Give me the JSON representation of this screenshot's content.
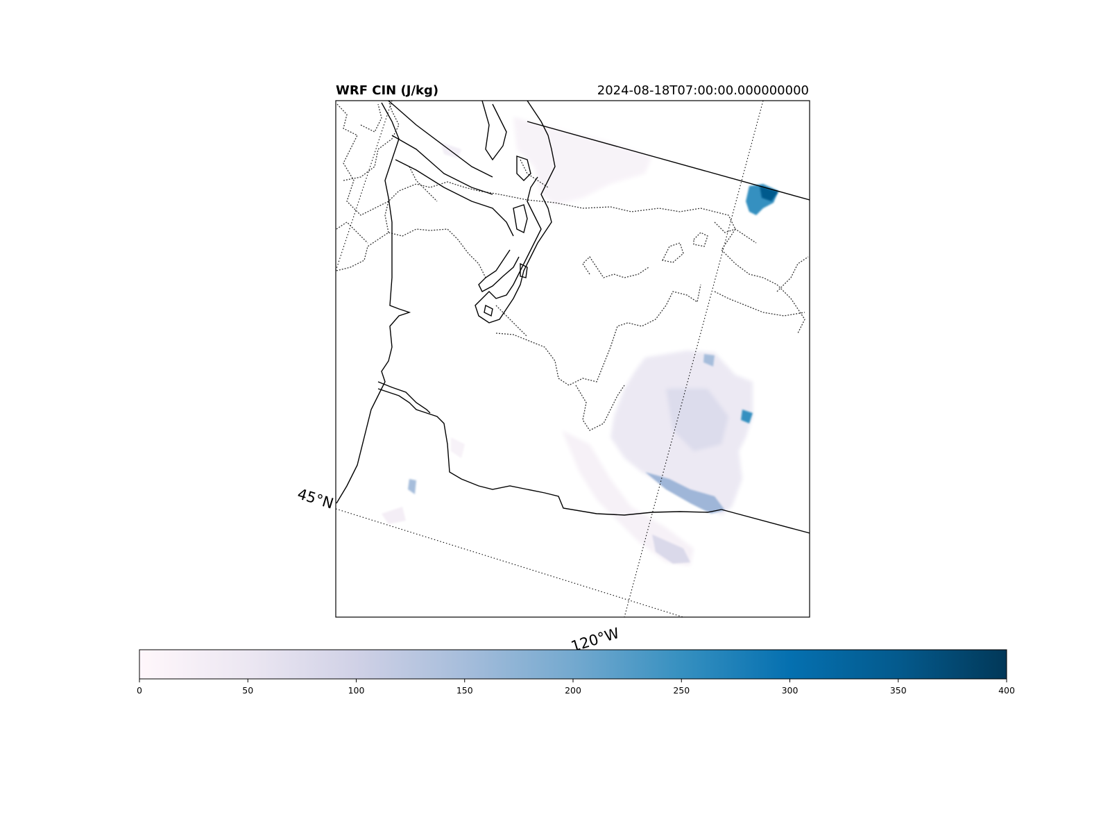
{
  "title": "WRF CIN (J/kg)",
  "timestamp": "2024-08-18T07:00:00.000000000",
  "gridlines": {
    "latitude_labels": [
      "45°N"
    ],
    "longitude_labels": [
      "120°W"
    ],
    "style": "dotted"
  },
  "colorbar": {
    "colormap": "PuBu",
    "orientation": "horizontal",
    "range": [
      0,
      400
    ],
    "ticks": [
      {
        "value": 0,
        "label": "0"
      },
      {
        "value": 50,
        "label": "50"
      },
      {
        "value": 100,
        "label": "100"
      },
      {
        "value": 150,
        "label": "150"
      },
      {
        "value": 200,
        "label": "200"
      },
      {
        "value": 250,
        "label": "250"
      },
      {
        "value": 300,
        "label": "300"
      },
      {
        "value": 350,
        "label": "350"
      },
      {
        "value": 400,
        "label": "400"
      }
    ],
    "colors": [
      "#fff7fb",
      "#ece7f2",
      "#d0d1e6",
      "#a6bddb",
      "#74a9cf",
      "#3690c0",
      "#0570b0",
      "#045a8d",
      "#023858"
    ]
  },
  "map_layers": {
    "coastline": "solid black",
    "state_borders": "solid black",
    "county_borders": "dashed black/grey"
  },
  "colors": {
    "frame": "#000000",
    "background": "#ffffff"
  }
}
